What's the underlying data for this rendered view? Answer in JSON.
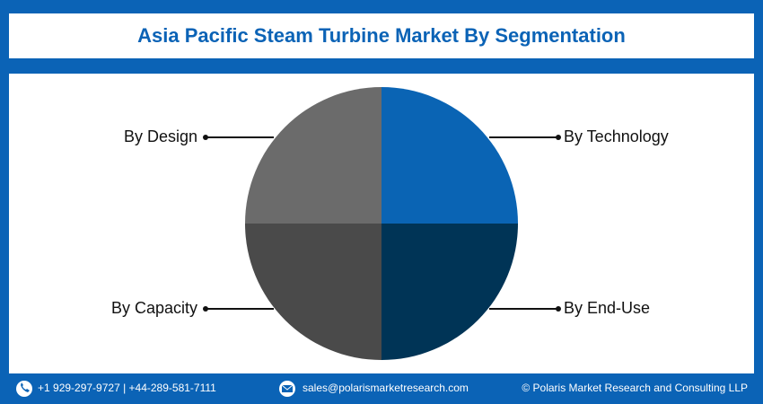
{
  "header": {
    "title": "Asia Pacific Steam Turbine Market By Segmentation"
  },
  "segments": [
    {
      "label": "By Technology"
    },
    {
      "label": "By End-Use"
    },
    {
      "label": "By Capacity"
    },
    {
      "label": "By Design"
    }
  ],
  "footer": {
    "phone": "+1 929-297-9727 | +44-289-581-7111",
    "email": "sales@polarismarketresearch.com",
    "copyright": "© Polaris Market Research and Consulting LLP"
  }
}
